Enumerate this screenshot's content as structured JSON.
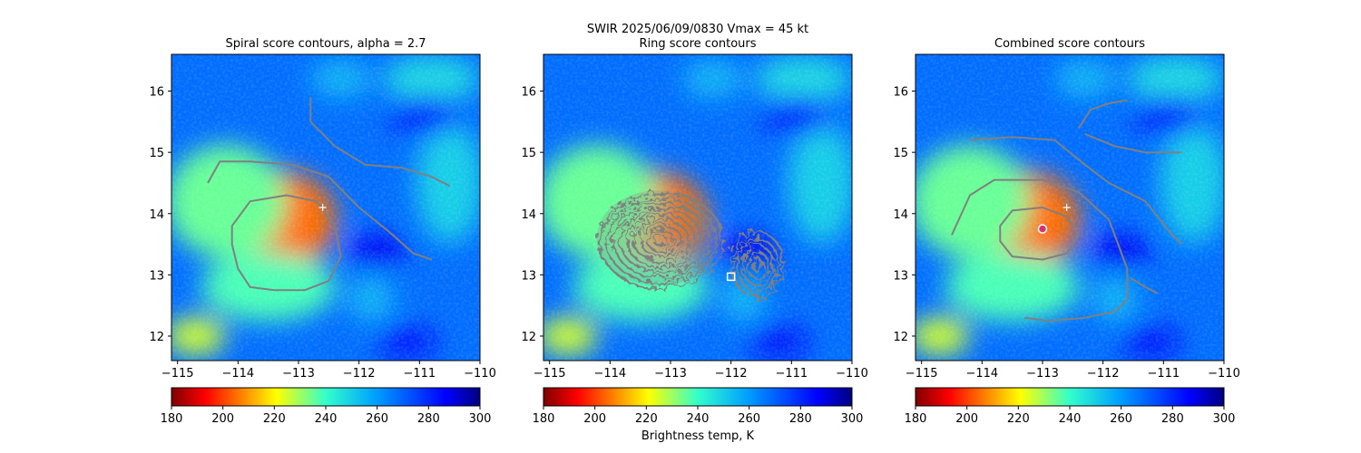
{
  "figure": {
    "suptitle_line1": "SWIR  2025/06/09/0830    Vmax = 45 kt",
    "colorbar_label": "Brightness temp, K"
  },
  "chart_data": [
    {
      "type": "heatmap",
      "title": "Spiral score contours, alpha =  2.7",
      "xlim": [
        -115.1,
        -110.0
      ],
      "ylim": [
        11.6,
        16.6
      ],
      "x_ticks": [
        -115,
        -114,
        -113,
        -112,
        -111,
        -110
      ],
      "x_tick_labels": [
        "−115",
        "−114",
        "−113",
        "−112",
        "−111",
        "−110"
      ],
      "y_ticks": [
        12,
        13,
        14,
        15,
        16
      ],
      "y_tick_labels": [
        "12",
        "13",
        "14",
        "15",
        "16"
      ],
      "colorbar": {
        "min": 180,
        "max": 300,
        "ticks": [
          180,
          200,
          220,
          240,
          260,
          280,
          300
        ],
        "colormap": "jet_r"
      },
      "field": {
        "background_k": 268,
        "blobs": [
          {
            "x": -113.3,
            "y": 13.9,
            "rx": 1.5,
            "ry": 1.3,
            "k": 205
          },
          {
            "x": -114.2,
            "y": 14.2,
            "rx": 1.6,
            "ry": 1.5,
            "k": 235
          },
          {
            "x": -113.5,
            "y": 12.8,
            "rx": 1.8,
            "ry": 0.9,
            "k": 238
          },
          {
            "x": -114.7,
            "y": 12.0,
            "rx": 0.8,
            "ry": 0.5,
            "k": 225
          },
          {
            "x": -110.5,
            "y": 14.5,
            "rx": 0.9,
            "ry": 1.6,
            "k": 250
          },
          {
            "x": -110.8,
            "y": 16.2,
            "rx": 1.3,
            "ry": 0.6,
            "k": 248
          },
          {
            "x": -112.3,
            "y": 16.2,
            "rx": 0.8,
            "ry": 0.5,
            "k": 255
          },
          {
            "x": -111.8,
            "y": 12.6,
            "rx": 0.6,
            "ry": 0.6,
            "k": 255
          },
          {
            "x": -110.9,
            "y": 15.6,
            "rx": 0.9,
            "ry": 0.5,
            "k": 285
          },
          {
            "x": -111.7,
            "y": 13.4,
            "rx": 0.8,
            "ry": 0.4,
            "k": 288
          },
          {
            "x": -111.2,
            "y": 11.9,
            "rx": 0.8,
            "ry": 0.4,
            "k": 285
          }
        ]
      },
      "contours": [
        {
          "name": "inner",
          "closed": true,
          "points": [
            [
              -114.1,
              13.8
            ],
            [
              -113.8,
              14.2
            ],
            [
              -113.2,
              14.3
            ],
            [
              -112.7,
              14.2
            ],
            [
              -112.4,
              13.8
            ],
            [
              -112.3,
              13.3
            ],
            [
              -112.5,
              12.9
            ],
            [
              -112.9,
              12.75
            ],
            [
              -113.4,
              12.75
            ],
            [
              -113.8,
              12.8
            ],
            [
              -114.0,
              13.1
            ],
            [
              -114.1,
              13.5
            ]
          ]
        },
        {
          "name": "outer",
          "closed": false,
          "points": [
            [
              -114.5,
              14.5
            ],
            [
              -114.3,
              14.85
            ],
            [
              -113.8,
              14.85
            ],
            [
              -113.1,
              14.8
            ],
            [
              -112.5,
              14.6
            ],
            [
              -112.0,
              14.1
            ],
            [
              -111.5,
              13.7
            ],
            [
              -111.1,
              13.35
            ],
            [
              -110.8,
              13.25
            ]
          ]
        },
        {
          "name": "upper",
          "closed": false,
          "points": [
            [
              -112.8,
              15.9
            ],
            [
              -112.8,
              15.5
            ],
            [
              -112.4,
              15.1
            ],
            [
              -111.9,
              14.8
            ],
            [
              -111.3,
              14.75
            ],
            [
              -110.8,
              14.6
            ],
            [
              -110.5,
              14.45
            ]
          ]
        }
      ],
      "markers": [
        {
          "type": "plus",
          "x": -112.6,
          "y": 14.1,
          "color": "#ffffff"
        }
      ]
    },
    {
      "type": "heatmap",
      "title": "Ring score contours",
      "xlim": [
        -115.1,
        -110.0
      ],
      "ylim": [
        11.6,
        16.6
      ],
      "x_ticks": [
        -115,
        -114,
        -113,
        -112,
        -111,
        -110
      ],
      "x_tick_labels": [
        "−115",
        "−114",
        "−113",
        "−112",
        "−111",
        "−110"
      ],
      "y_ticks": [
        12,
        13,
        14,
        15,
        16
      ],
      "y_tick_labels": [
        "12",
        "13",
        "14",
        "15",
        "16"
      ],
      "colorbar": {
        "min": 180,
        "max": 300,
        "ticks": [
          180,
          200,
          220,
          240,
          260,
          280,
          300
        ],
        "colormap": "jet_r"
      },
      "field": "same",
      "ring_region": {
        "x": -113.2,
        "y": 13.6,
        "rx": 1.7,
        "ry": 1.3
      },
      "ring_region_east": {
        "x": -111.6,
        "y": 13.2,
        "rx": 0.7,
        "ry": 0.9
      },
      "markers": [
        {
          "type": "square",
          "x": -112.0,
          "y": 12.97,
          "color": "#ffffff"
        }
      ]
    },
    {
      "type": "heatmap",
      "title": "Combined score contours",
      "xlim": [
        -115.1,
        -110.0
      ],
      "ylim": [
        11.6,
        16.6
      ],
      "x_ticks": [
        -115,
        -114,
        -113,
        -112,
        -111,
        -110
      ],
      "x_tick_labels": [
        "−115",
        "−114",
        "−113",
        "−112",
        "−111",
        "−110"
      ],
      "y_ticks": [
        12,
        13,
        14,
        15,
        16
      ],
      "y_tick_labels": [
        "12",
        "13",
        "14",
        "15",
        "16"
      ],
      "colorbar": {
        "min": 180,
        "max": 300,
        "ticks": [
          180,
          200,
          220,
          240,
          260,
          280,
          300
        ],
        "colormap": "jet_r"
      },
      "field": "same",
      "contours": [
        {
          "name": "inner",
          "closed": true,
          "points": [
            [
              -113.7,
              13.8
            ],
            [
              -113.5,
              14.05
            ],
            [
              -113.0,
              14.1
            ],
            [
              -112.6,
              13.95
            ],
            [
              -112.4,
              13.65
            ],
            [
              -112.6,
              13.35
            ],
            [
              -113.0,
              13.25
            ],
            [
              -113.5,
              13.3
            ],
            [
              -113.7,
              13.55
            ]
          ]
        },
        {
          "name": "outer",
          "closed": false,
          "points": [
            [
              -114.5,
              13.65
            ],
            [
              -114.2,
              14.3
            ],
            [
              -113.8,
              14.55
            ],
            [
              -113.0,
              14.55
            ],
            [
              -112.4,
              14.35
            ],
            [
              -111.9,
              13.9
            ],
            [
              -111.6,
              13.1
            ],
            [
              -111.6,
              12.6
            ],
            [
              -111.8,
              12.4
            ],
            [
              -112.3,
              12.3
            ],
            [
              -112.9,
              12.25
            ],
            [
              -113.3,
              12.3
            ]
          ]
        },
        {
          "name": "upper-left",
          "closed": false,
          "points": [
            [
              -114.2,
              15.2
            ],
            [
              -113.5,
              15.25
            ],
            [
              -112.8,
              15.2
            ],
            [
              -112.3,
              14.8
            ],
            [
              -111.9,
              14.5
            ],
            [
              -111.3,
              14.2
            ],
            [
              -110.9,
              13.7
            ],
            [
              -110.7,
              13.5
            ]
          ]
        },
        {
          "name": "upper-right",
          "closed": false,
          "points": [
            [
              -112.3,
              15.3
            ],
            [
              -111.8,
              15.1
            ],
            [
              -111.3,
              15.0
            ],
            [
              -110.7,
              15.0
            ]
          ]
        },
        {
          "name": "top-hook",
          "closed": false,
          "points": [
            [
              -112.4,
              15.4
            ],
            [
              -112.2,
              15.7
            ],
            [
              -111.9,
              15.8
            ],
            [
              -111.6,
              15.85
            ]
          ]
        },
        {
          "name": "east-loop",
          "closed": false,
          "points": [
            [
              -111.55,
              12.95
            ],
            [
              -111.3,
              12.8
            ],
            [
              -111.1,
              12.7
            ]
          ]
        }
      ],
      "markers": [
        {
          "type": "plus",
          "x": -112.6,
          "y": 14.1,
          "color": "#ffffff"
        },
        {
          "type": "circle",
          "x": -113.0,
          "y": 13.75,
          "color": "#d6336c"
        }
      ]
    }
  ]
}
